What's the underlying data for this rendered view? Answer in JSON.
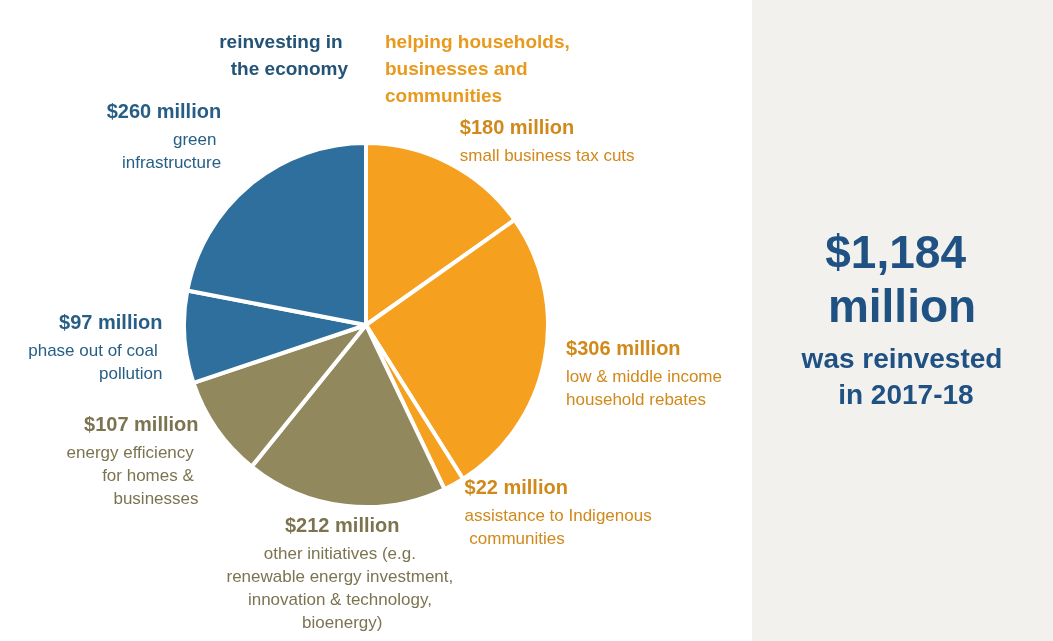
{
  "chart_data": {
    "type": "pie",
    "categories": [
      "small business tax cuts",
      "low & middle income household rebates",
      "assistance to Indigenous communities",
      "other initiatives (e.g. renewable energy investment, innovation & technology, bioenergy)",
      "energy efficiency for homes & businesses",
      "phase out of coal pollution",
      "green infrastructure"
    ],
    "values": [
      180,
      306,
      22,
      212,
      107,
      97,
      260
    ],
    "value_labels": [
      "$180 million",
      "$306 million",
      "$22 million",
      "$212 million",
      "$107 million",
      "$97 million",
      "$260 million"
    ],
    "colors": [
      "#f5a11f",
      "#f5a11f",
      "#f5a11f",
      "#92885e",
      "#92885e",
      "#2e6f9e",
      "#2e6f9e"
    ],
    "annotations": [
      "reinvesting in the economy",
      "helping households, businesses and communities",
      "$1,184 million",
      "was reinvested in 2017-18"
    ]
  }
}
